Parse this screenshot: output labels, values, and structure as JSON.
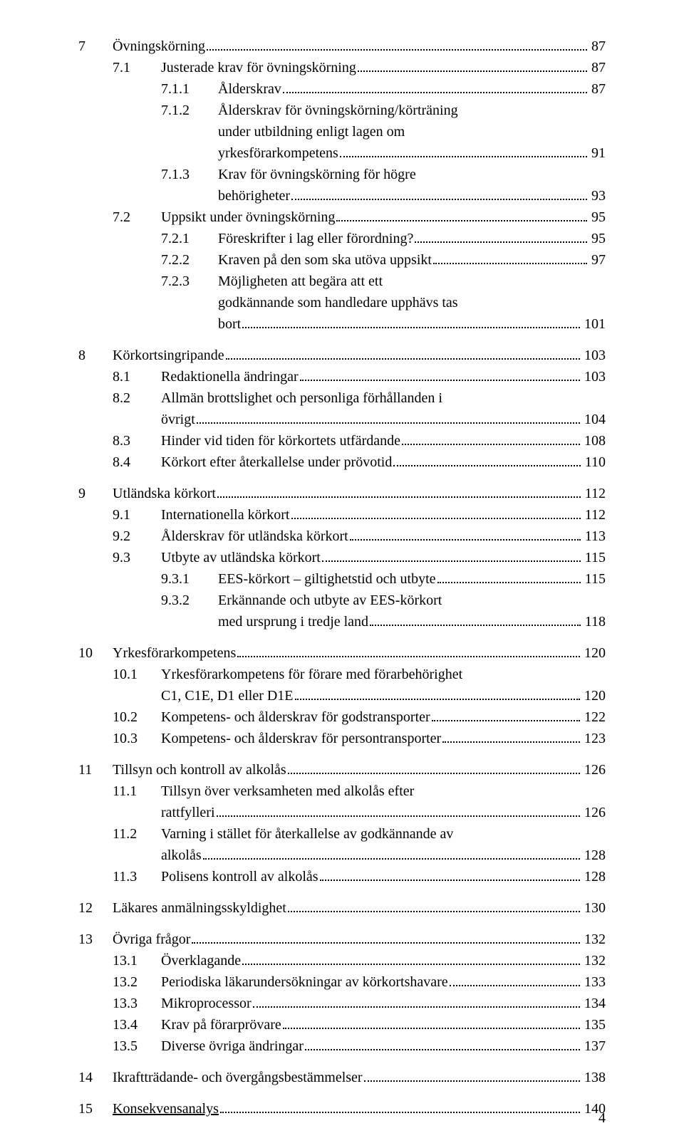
{
  "page_number": "4",
  "toc": [
    {
      "type": "l1",
      "num": "7",
      "text": "Övningskörning",
      "page": "87"
    },
    {
      "type": "l2",
      "num": "7.1",
      "text": "Justerade krav för övningskörning",
      "page": "87"
    },
    {
      "type": "l3",
      "num": "7.1.1",
      "text": "Ålderskrav",
      "page": "87"
    },
    {
      "type": "l3",
      "num": "7.1.2",
      "text": "Ålderskrav för övningskörning/körträning",
      "wrap": [
        "under utbildning enligt lagen om",
        "yrkesförarkompetens"
      ],
      "page": "91"
    },
    {
      "type": "l3",
      "num": "7.1.3",
      "text": "Krav för övningskörning för högre",
      "wrap": [
        "behörigheter"
      ],
      "page": "93"
    },
    {
      "type": "l2",
      "num": "7.2",
      "text": "Uppsikt under övningskörning",
      "page": "95"
    },
    {
      "type": "l3",
      "num": "7.2.1",
      "text": "Föreskrifter i lag eller förordning?",
      "page": "95"
    },
    {
      "type": "l3",
      "num": "7.2.2",
      "text": "Kraven på den som ska utöva uppsikt",
      "page": "97"
    },
    {
      "type": "l3",
      "num": "7.2.3",
      "text": "Möjligheten att begära att ett",
      "wrap": [
        "godkännande som handledare upphävs tas",
        "bort"
      ],
      "page": "101"
    },
    {
      "type": "gap"
    },
    {
      "type": "l1",
      "num": "8",
      "text": "Körkortsingripande",
      "page": "103"
    },
    {
      "type": "l2",
      "num": "8.1",
      "text": "Redaktionella ändringar",
      "page": "103"
    },
    {
      "type": "l2",
      "num": "8.2",
      "text": "Allmän brottslighet och personliga förhållanden i",
      "wrap": [
        "övrigt"
      ],
      "page": "104"
    },
    {
      "type": "l2",
      "num": "8.3",
      "text": "Hinder vid tiden för körkortets utfärdande",
      "page": "108"
    },
    {
      "type": "l2",
      "num": "8.4",
      "text": "Körkort efter återkallelse under prövotid",
      "page": "110"
    },
    {
      "type": "gap"
    },
    {
      "type": "l1",
      "num": "9",
      "text": "Utländska körkort",
      "page": "112"
    },
    {
      "type": "l2",
      "num": "9.1",
      "text": "Internationella körkort",
      "page": "112"
    },
    {
      "type": "l2",
      "num": "9.2",
      "text": "Ålderskrav för utländska körkort",
      "page": "113"
    },
    {
      "type": "l2",
      "num": "9.3",
      "text": "Utbyte av utländska körkort",
      "page": "115"
    },
    {
      "type": "l3",
      "num": "9.3.1",
      "text": "EES-körkort – giltighetstid och utbyte",
      "page": "115"
    },
    {
      "type": "l3",
      "num": "9.3.2",
      "text": "Erkännande och utbyte av EES-körkort",
      "wrap": [
        "med ursprung i tredje land"
      ],
      "page": "118"
    },
    {
      "type": "gap"
    },
    {
      "type": "l1",
      "num": "10",
      "text": "Yrkesförarkompetens",
      "page": "120"
    },
    {
      "type": "l2",
      "num": "10.1",
      "text": "Yrkesförarkompetens för förare med förarbehörighet",
      "wrap": [
        "C1, C1E, D1 eller D1E"
      ],
      "page": "120"
    },
    {
      "type": "l2",
      "num": "10.2",
      "text": "Kompetens- och ålderskrav för godstransporter",
      "page": "122"
    },
    {
      "type": "l2",
      "num": "10.3",
      "text": "Kompetens- och ålderskrav för persontransporter",
      "page": "123"
    },
    {
      "type": "gap"
    },
    {
      "type": "l1",
      "num": "11",
      "text": "Tillsyn och kontroll av alkolås",
      "page": "126"
    },
    {
      "type": "l2",
      "num": "11.1",
      "text": "Tillsyn över verksamheten med alkolås efter",
      "wrap": [
        "rattfylleri"
      ],
      "page": "126"
    },
    {
      "type": "l2",
      "num": "11.2",
      "text": "Varning i stället för återkallelse av godkännande av",
      "wrap": [
        "alkolås"
      ],
      "page": "128"
    },
    {
      "type": "l2",
      "num": "11.3",
      "text": "Polisens kontroll av alkolås",
      "page": "128"
    },
    {
      "type": "gap"
    },
    {
      "type": "l1",
      "num": "12",
      "text": "Läkares anmälningsskyldighet",
      "page": "130"
    },
    {
      "type": "gap"
    },
    {
      "type": "l1",
      "num": "13",
      "text": "Övriga frågor",
      "page": "132"
    },
    {
      "type": "l2",
      "num": "13.1",
      "text": "Överklagande",
      "page": "132"
    },
    {
      "type": "l2",
      "num": "13.2",
      "text": "Periodiska läkarundersökningar av körkortshavare",
      "page": "133"
    },
    {
      "type": "l2",
      "num": "13.3",
      "text": "Mikroprocessor",
      "page": "134"
    },
    {
      "type": "l2",
      "num": "13.4",
      "text": "Krav på förarprövare",
      "page": "135"
    },
    {
      "type": "l2",
      "num": "13.5",
      "text": "Diverse övriga ändringar",
      "page": "137"
    },
    {
      "type": "gap"
    },
    {
      "type": "l1",
      "num": "14",
      "text": "Ikraftträdande- och övergångsbestämmelser",
      "page": "138"
    },
    {
      "type": "gap"
    },
    {
      "type": "l1",
      "num": "15",
      "text": "Konsekvensanalys",
      "page": "140",
      "underline": true
    }
  ]
}
